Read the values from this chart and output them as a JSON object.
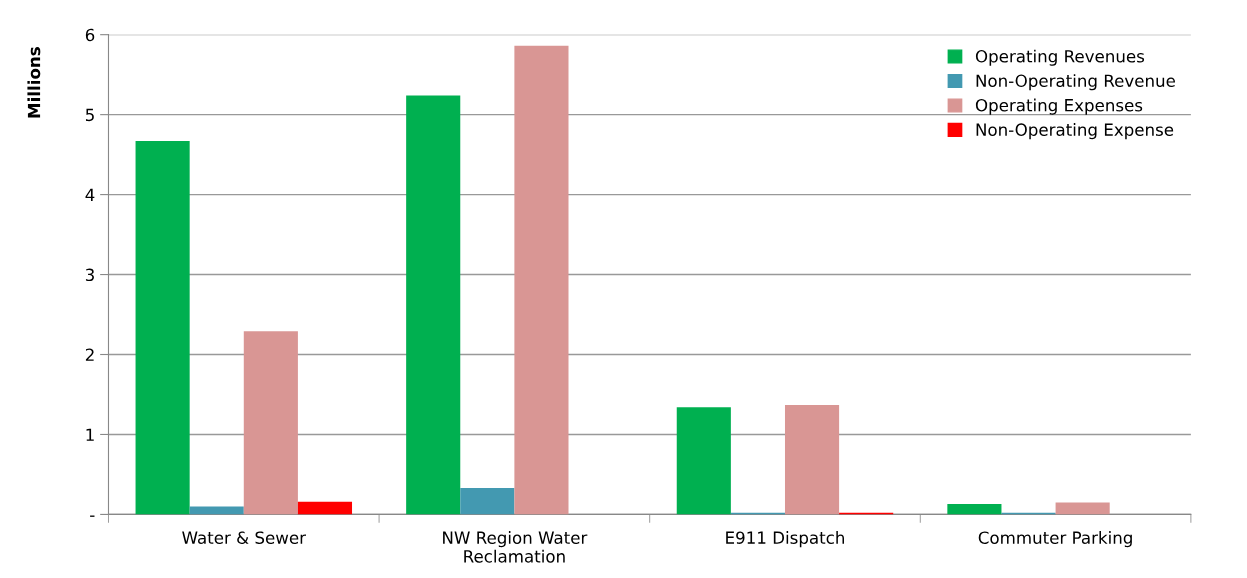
{
  "chart_data": {
    "type": "bar",
    "ylabel": "Millions",
    "categories": [
      "Water & Sewer",
      "NW Region Water\nReclamation",
      "E911 Dispatch",
      "Commuter Parking"
    ],
    "series": [
      {
        "name": "Operating Revenues",
        "color": "#00b050",
        "values": [
          4.67,
          5.24,
          1.34,
          0.13
        ]
      },
      {
        "name": "Non-Operating Revenue",
        "color": "#4399b1",
        "values": [
          0.1,
          0.33,
          0.02,
          0.02
        ]
      },
      {
        "name": "Operating Expenses",
        "color": "#d99694",
        "values": [
          2.29,
          5.86,
          1.37,
          0.15
        ]
      },
      {
        "name": "Non-Operating Expense",
        "color": "#ff0000",
        "values": [
          0.16,
          0,
          0.02,
          0
        ]
      }
    ],
    "ylim": [
      0,
      6
    ],
    "yticks": [
      {
        "value": 0,
        "label": "-"
      },
      1,
      2,
      3,
      4,
      5,
      6
    ],
    "grid": "y",
    "legend": "top right"
  }
}
